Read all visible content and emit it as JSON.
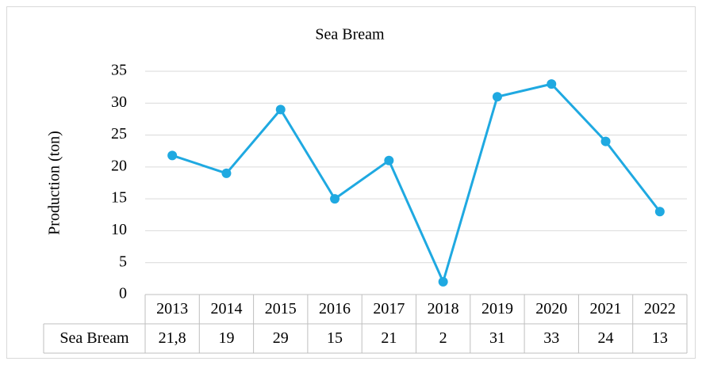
{
  "chart_data": {
    "type": "line",
    "title": "Sea Bream",
    "y_label": "Production (ton)",
    "categories": [
      "2013",
      "2014",
      "2015",
      "2016",
      "2017",
      "2018",
      "2019",
      "2020",
      "2021",
      "2022"
    ],
    "series": [
      {
        "name": "Sea Bream",
        "color": "#1fa9e1",
        "values": [
          21.8,
          19,
          29,
          15,
          21,
          2,
          31,
          33,
          24,
          13
        ],
        "value_labels": [
          "21,8",
          "19",
          "29",
          "15",
          "21",
          "2",
          "31",
          "33",
          "24",
          "13"
        ]
      }
    ],
    "ylim": [
      0,
      35
    ],
    "yticks": [
      0,
      5,
      10,
      15,
      20,
      25,
      30,
      35
    ],
    "grid": true,
    "data_table": true
  }
}
